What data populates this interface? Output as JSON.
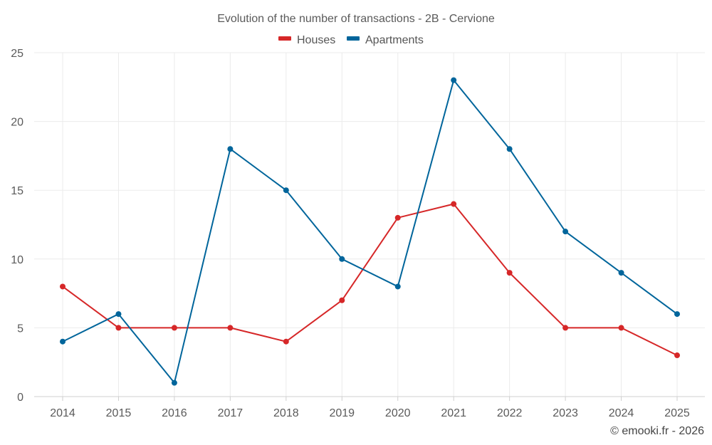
{
  "chart_data": {
    "type": "line",
    "title": "Evolution of the number of transactions - 2B - Cervione",
    "categories": [
      "2014",
      "2015",
      "2016",
      "2017",
      "2018",
      "2019",
      "2020",
      "2021",
      "2022",
      "2023",
      "2024",
      "2025"
    ],
    "series": [
      {
        "name": "Houses",
        "color": "#d62728",
        "values": [
          8,
          5,
          5,
          5,
          4,
          7,
          13,
          14,
          9,
          5,
          5,
          3
        ]
      },
      {
        "name": "Apartments",
        "color": "#00659b",
        "values": [
          4,
          6,
          1,
          18,
          15,
          10,
          8,
          23,
          18,
          12,
          9,
          6
        ]
      }
    ],
    "ylim": [
      0,
      25
    ],
    "yticks": [
      0,
      5,
      10,
      15,
      20,
      25
    ],
    "xlabel": "",
    "ylabel": "",
    "grid": true,
    "legend_position": "top-center"
  },
  "credit": "© emooki.fr - 2026"
}
